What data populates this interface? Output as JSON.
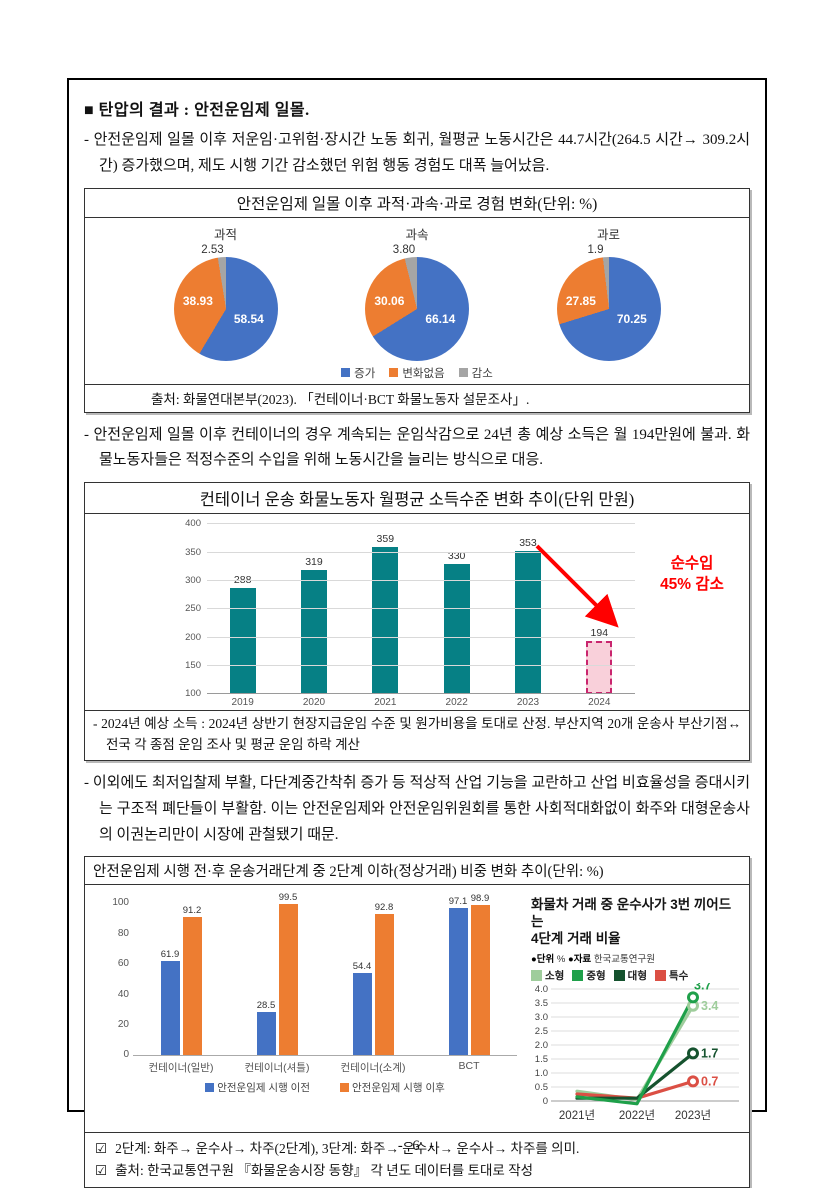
{
  "page_number": "- 6 -",
  "heading": "■ 탄압의 결과 : 안전운임제 일몰.",
  "paragraphs": {
    "p1": "- 안전운임제 일몰 이후 저운임·고위험·장시간 노동 회귀, 월평균 노동시간은 44.7시간(264.5 시간→ 309.2시간) 증가했으며, 제도 시행 기간 감소했던 위험 행동 경험도 대폭 늘어났음.",
    "p2": "- 안전운임제 일몰 이후 컨테이너의 경우 계속되는 운임삭감으로 24년 총 예상 소득은 월 194만원에 불과. 화물노동자들은 적정수준의 수입을 위해 노동시간을 늘리는 방식으로 대응.",
    "p3": "- 이외에도 최저입찰제 부활, 다단계중간착취 증가 등 적상적 산업 기능을 교란하고 산업 비효율성을 증대시키는 구조적 폐단들이 부활함. 이는 안전운임제와 안전운임위원회를 통한 사회적대화없이 화주와 대형운송사의 이권논리만이 시장에 관철됐기 때문."
  },
  "chart_data": [
    {
      "type": "pie",
      "title": "안전운임제 일몰 이후 과적·과속·과로 경험 변화(단위: %)",
      "legend": [
        "증가",
        "변화없음",
        "감소"
      ],
      "colors": [
        "#4472C4",
        "#ED7D31",
        "#A5A5A5"
      ],
      "pies": [
        {
          "label": "과적",
          "values": [
            "58.54",
            "38.93",
            "2.53"
          ]
        },
        {
          "label": "과속",
          "values": [
            "66.14",
            "30.06",
            "3.80"
          ]
        },
        {
          "label": "과로",
          "values": [
            "70.25",
            "27.85",
            "1.9"
          ]
        }
      ],
      "source": "출처: 화물연대본부(2023). 「컨테이너·BCT 화물노동자 설문조사」."
    },
    {
      "type": "bar",
      "title": "컨테이너 운송 화물노동자 월평균 소득수준 변화 추이(단위 만원)",
      "categories": [
        "2019",
        "2020",
        "2021",
        "2022",
        "2023",
        "2024"
      ],
      "values": [
        288,
        319,
        359,
        330,
        353,
        194
      ],
      "ylim": [
        100,
        400
      ],
      "yticks": [
        400,
        350,
        300,
        250,
        200,
        150,
        100
      ],
      "bar_color": "#068085",
      "highlight_index": 5,
      "highlight_color": "#F9D0DA",
      "highlight_border": "#C9256E",
      "annotation_lines": [
        "순수입",
        "45% 감소"
      ],
      "annotation_color": "#FF0000",
      "footnote": "- 2024년 예상 소득 : 2024년 상반기 현장지급운임 수준 및 원가비용을 토대로 산정. 부산지역 20개 운송사 부산기점↔전국 각 종점 운임 조사 및 평균 운임 하락 계산"
    },
    {
      "type": "bar",
      "title": "안전운임제 시행 전·후 운송거래단계 중 2단계 이하(정상거래) 비중 변화 추이(단위: %)",
      "categories": [
        "컨테이너(일반)",
        "컨테이너(셔틀)",
        "컨테이너(소계)",
        "BCT"
      ],
      "series": [
        {
          "name": "안전운임제 시행 이전",
          "color": "#4472C4",
          "values": [
            61.9,
            28.5,
            54.4,
            97.1
          ]
        },
        {
          "name": "안전운임제 시행 이후",
          "color": "#ED7D31",
          "values": [
            91.2,
            99.5,
            92.8,
            98.9
          ]
        }
      ],
      "ylim": [
        0,
        100
      ],
      "yticks": [
        0,
        20,
        40,
        60,
        80,
        100
      ]
    },
    {
      "type": "line",
      "title": "화물차 거래 중 운수사가 3번 끼어드는 4단계 거래 비율",
      "title_lines": [
        "화물차 거래 중 운수사가 3번 끼어드는",
        "4단계 거래 비율"
      ],
      "meta": {
        "unit_label": "●단위",
        "unit_value": "%",
        "source_label": "●자료",
        "source_value": "한국교통연구원"
      },
      "x": [
        "2021년",
        "2022년",
        "2023년"
      ],
      "ylim": [
        0,
        4
      ],
      "ytick_labels": [
        "4.0",
        "3.5",
        "3.0",
        "2.5",
        "2.0",
        "1.5",
        "1.0",
        "0.5",
        "0"
      ],
      "series": [
        {
          "name": "소형",
          "color": "#9FCD9C",
          "values": [
            0.35,
            0.05,
            3.4
          ],
          "end_label": "3.4",
          "label_dx": 8,
          "label_dy": 4
        },
        {
          "name": "중형",
          "color": "#1FA04A",
          "values": [
            0.15,
            -0.1,
            3.7
          ],
          "end_label": "3.7",
          "label_dx": 1,
          "label_dy": -8
        },
        {
          "name": "대형",
          "color": "#15522E",
          "values": [
            0.1,
            0.1,
            1.7
          ],
          "end_label": "1.7",
          "label_dx": 8,
          "label_dy": 4
        },
        {
          "name": "특수",
          "color": "#DB4F44",
          "values": [
            0.25,
            0.1,
            0.7
          ],
          "end_label": "0.7",
          "label_dx": 8,
          "label_dy": 4
        }
      ]
    }
  ],
  "notes": {
    "checkbox": "☑",
    "items": [
      "2단계: 화주→ 운수사→ 차주(2단계), 3단계: 화주→ 운수사→ 운수사→ 차주를 의미.",
      "출처: 한국교통연구원 『화물운송시장 동향』 각 년도 데이터를 토대로 작성"
    ]
  }
}
